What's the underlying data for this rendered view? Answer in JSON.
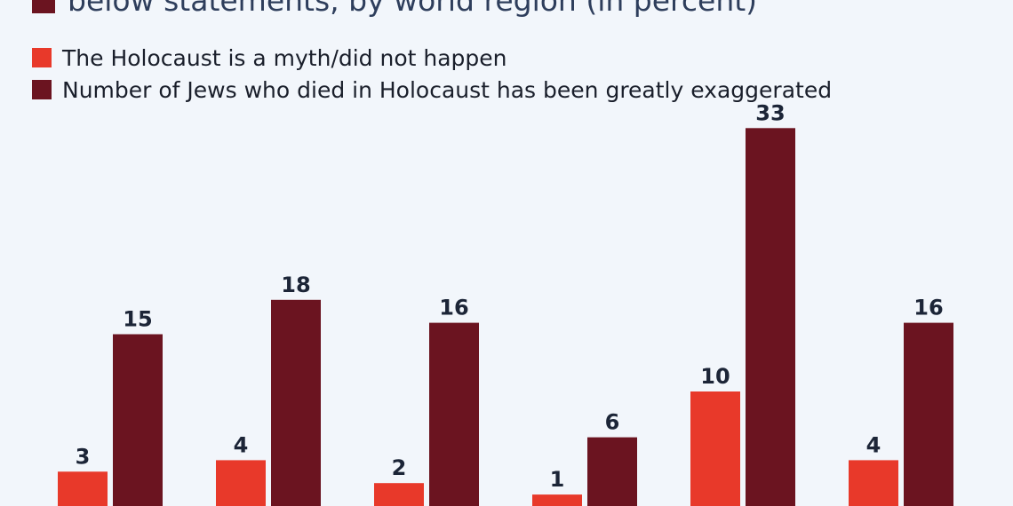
{
  "header": {
    "title_fragment": "below statements, by world region (in percent)"
  },
  "colors": {
    "series_1": "#e8392a",
    "series_2": "#6b1420",
    "background": "#f2f6fb",
    "title_text": "#2e3e5c"
  },
  "chart_data": {
    "type": "bar",
    "title": "below statements, by world region (in percent)",
    "categories": [
      "",
      "",
      "",
      "",
      "",
      ""
    ],
    "series": [
      {
        "name": "The Holocaust is a myth/did not happen",
        "values": [
          3,
          4,
          2,
          1,
          10,
          4
        ]
      },
      {
        "name": "Number of Jews who died in Holocaust has been greatly exaggerated",
        "values": [
          15,
          18,
          16,
          6,
          33,
          16
        ]
      }
    ],
    "ylim": [
      0,
      33
    ],
    "grid": false,
    "legend": "top-left"
  }
}
